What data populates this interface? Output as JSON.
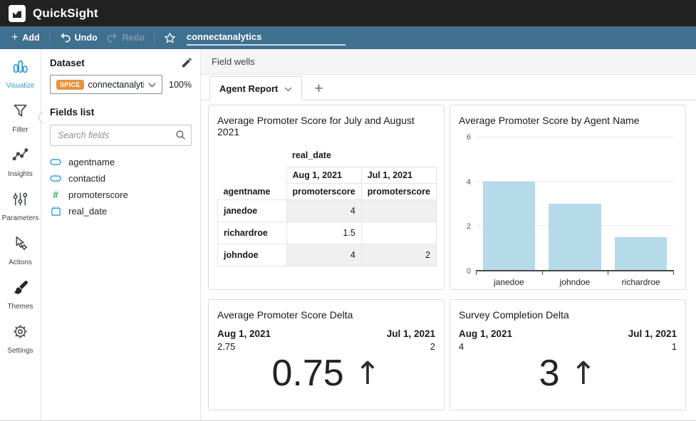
{
  "header": {
    "app_title": "QuickSight"
  },
  "toolbar": {
    "add_label": "Add",
    "undo_label": "Undo",
    "redo_label": "Redo",
    "analysis_name": "connectanalytics"
  },
  "icons": {
    "add_glyph": "+",
    "new_tab_glyph": "+",
    "hash_glyph": "#"
  },
  "sidebar": {
    "items": [
      {
        "label": "Visualize",
        "icon": "bar-chart-icon",
        "active": true
      },
      {
        "label": "Filter",
        "icon": "funnel-icon",
        "active": false
      },
      {
        "label": "Insights",
        "icon": "insights-icon",
        "active": false
      },
      {
        "label": "Parameters",
        "icon": "sliders-icon",
        "active": false
      },
      {
        "label": "Actions",
        "icon": "pointer-gear-icon",
        "active": false
      },
      {
        "label": "Themes",
        "icon": "paintbrush-icon",
        "active": false
      },
      {
        "label": "Settings",
        "icon": "gear-icon",
        "active": false
      }
    ]
  },
  "dataset_panel": {
    "title": "Dataset",
    "spice_badge": "SPICE",
    "dataset_name": "connectanalytic...",
    "import_pct": "100%",
    "fields_list_title": "Fields list",
    "search_placeholder": "Search fields",
    "fields": [
      {
        "name": "agentname",
        "type": "dimension"
      },
      {
        "name": "contactid",
        "type": "dimension"
      },
      {
        "name": "promoterscore",
        "type": "measure"
      },
      {
        "name": "real_date",
        "type": "date"
      }
    ]
  },
  "main": {
    "field_wells_label": "Field wells",
    "tab_label": "Agent Report"
  },
  "colors": {
    "accent_blue": "#2f9bd3",
    "toolbar_blue": "#40708f",
    "spice_orange": "#e8923e",
    "bar_fill": "#b5daea"
  },
  "chart_data": [
    {
      "type": "table",
      "title": "Average Promoter Score for July and August 2021",
      "column_group": "real_date",
      "columns": [
        "Aug 1, 2021",
        "Jul 1, 2021"
      ],
      "sub_columns": [
        "promoterscore",
        "promoterscore"
      ],
      "row_header": "agentname",
      "rows": [
        [
          "janedoe",
          "4",
          ""
        ],
        [
          "richardroe",
          "1.5",
          ""
        ],
        [
          "johndoe",
          "4",
          "2"
        ]
      ]
    },
    {
      "type": "bar",
      "title": "Average Promoter Score by Agent Name",
      "categories": [
        "janedoe",
        "johndoe",
        "richardroe"
      ],
      "values": [
        4,
        3,
        1.5
      ],
      "ylim": [
        0,
        6
      ],
      "yticks": [
        0,
        2,
        4,
        6
      ],
      "grid": true,
      "legend": "none"
    },
    {
      "type": "kpi",
      "title": "Average Promoter Score Delta",
      "current_label": "Aug 1, 2021",
      "current_value": "2.75",
      "previous_label": "Jul 1, 2021",
      "previous_value": "2",
      "delta_value": "0.75",
      "delta_glyph": "↑",
      "direction": "up"
    },
    {
      "type": "kpi",
      "title": "Survey Completion Delta",
      "current_label": "Aug 1, 2021",
      "current_value": "4",
      "previous_label": "Jul 1, 2021",
      "previous_value": "1",
      "delta_value": "3",
      "delta_glyph": "↑",
      "direction": "up"
    }
  ]
}
